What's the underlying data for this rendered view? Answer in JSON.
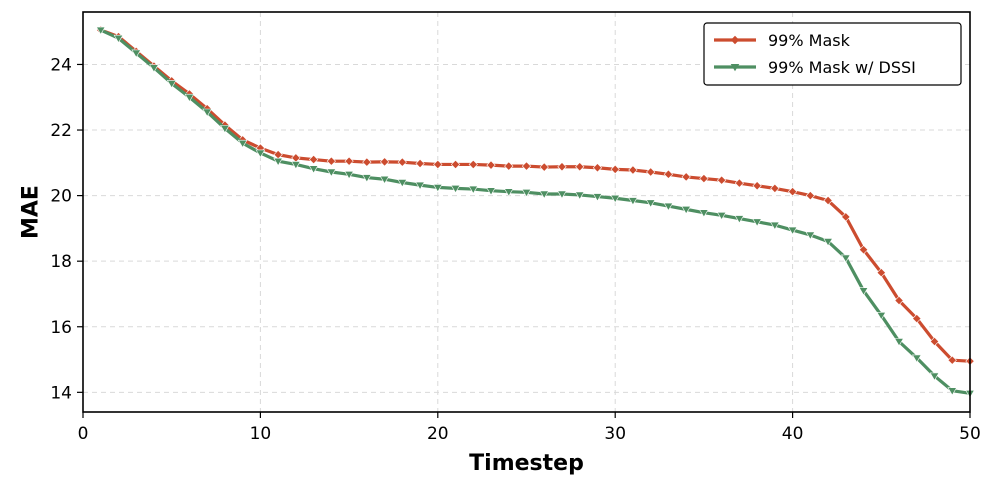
{
  "chart_data": {
    "type": "line",
    "title": "",
    "xlabel": "Timestep",
    "ylabel": "MAE",
    "xlim": [
      0,
      50
    ],
    "ylim": [
      13.4,
      25.6
    ],
    "xticks": [
      0,
      10,
      20,
      30,
      40,
      50
    ],
    "yticks": [
      14,
      16,
      18,
      20,
      22,
      24
    ],
    "grid": true,
    "legend_position": "top-right",
    "x": [
      1,
      2,
      3,
      4,
      5,
      6,
      7,
      8,
      9,
      10,
      11,
      12,
      13,
      14,
      15,
      16,
      17,
      18,
      19,
      20,
      21,
      22,
      23,
      24,
      25,
      26,
      27,
      28,
      29,
      30,
      31,
      32,
      33,
      34,
      35,
      36,
      37,
      38,
      39,
      40,
      41,
      42,
      43,
      44,
      45,
      46,
      47,
      48,
      49,
      50
    ],
    "series": [
      {
        "name": "99% Mask",
        "color": "#cc4c2f",
        "marker": "diamond",
        "values": [
          25.05,
          24.85,
          24.4,
          23.95,
          23.5,
          23.1,
          22.65,
          22.15,
          21.7,
          21.45,
          21.25,
          21.15,
          21.1,
          21.05,
          21.05,
          21.02,
          21.03,
          21.02,
          20.98,
          20.95,
          20.95,
          20.95,
          20.93,
          20.9,
          20.9,
          20.87,
          20.88,
          20.88,
          20.85,
          20.8,
          20.78,
          20.72,
          20.65,
          20.57,
          20.52,
          20.47,
          20.38,
          20.3,
          20.22,
          20.12,
          20.0,
          19.85,
          19.35,
          18.35,
          17.65,
          16.8,
          16.25,
          15.55,
          14.98,
          14.95
        ]
      },
      {
        "name": "99% Mask w/ DSSI",
        "color": "#4e8f62",
        "marker": "triangle-down",
        "values": [
          25.05,
          24.8,
          24.35,
          23.9,
          23.42,
          23.0,
          22.55,
          22.05,
          21.6,
          21.3,
          21.05,
          20.95,
          20.82,
          20.72,
          20.65,
          20.55,
          20.5,
          20.4,
          20.32,
          20.25,
          20.22,
          20.2,
          20.15,
          20.12,
          20.1,
          20.05,
          20.05,
          20.02,
          19.97,
          19.92,
          19.85,
          19.78,
          19.68,
          19.58,
          19.48,
          19.4,
          19.3,
          19.2,
          19.1,
          18.95,
          18.8,
          18.6,
          18.1,
          17.1,
          16.35,
          15.55,
          15.05,
          14.5,
          14.05,
          13.97
        ]
      }
    ]
  }
}
